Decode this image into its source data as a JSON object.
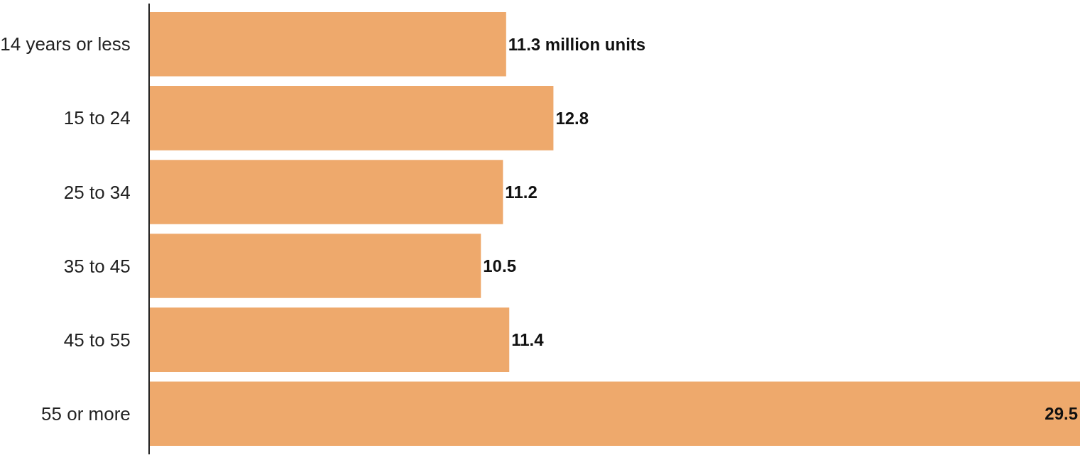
{
  "chart_data": {
    "type": "bar",
    "orientation": "horizontal",
    "categories": [
      "14 years or less",
      "15 to 24",
      "25 to 34",
      "35 to 45",
      "45 to 55",
      "55 or more"
    ],
    "values": [
      11.3,
      12.8,
      11.2,
      10.5,
      11.4,
      29.5
    ],
    "value_labels": [
      "11.3 million units",
      "12.8",
      "11.2",
      "10.5",
      "11.4",
      "29.5"
    ],
    "color": "#eea96c"
  }
}
